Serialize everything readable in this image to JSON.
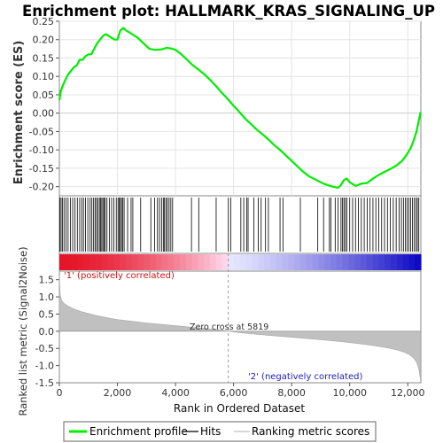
{
  "chart_data": {
    "type": "line",
    "title": "Enrichment plot: HALLMARK_KRAS_SIGNALING_UP",
    "xlabel": "Rank in Ordered Dataset",
    "ylabel_top": "Enrichment score (ES)",
    "ylabel_bottom": "Ranked list metric (Signal2Noise)",
    "x_ticks": [
      0,
      2000,
      4000,
      6000,
      8000,
      10000,
      12000
    ],
    "x_tick_labels": [
      "0",
      "2,000",
      "4,000",
      "6,000",
      "8,000",
      "10,000",
      "12,000"
    ],
    "xlim": [
      0,
      12450
    ],
    "es_ylim": [
      -0.225,
      0.25
    ],
    "es_ticks": [
      0.25,
      0.2,
      0.15,
      0.1,
      0.05,
      0.0,
      -0.05,
      -0.1,
      -0.15,
      -0.2
    ],
    "es_tick_labels": [
      "0.25",
      "0.20",
      "0.15",
      "0.10",
      "0.05",
      "0.00",
      "-0.05",
      "-0.10",
      "-0.15",
      "-0.20"
    ],
    "metric_ylim": [
      -1.5,
      1.75
    ],
    "metric_ticks": [
      1.5,
      1.0,
      0.5,
      0.0,
      -0.5,
      -1.0,
      -1.5
    ],
    "metric_tick_labels": [
      "1.5",
      "1.0",
      "0.5",
      "0.0",
      "-0.5",
      "-1.0",
      "-1.5"
    ],
    "zero_cross": 5819,
    "zero_cross_label": "Zero cross at 5819",
    "positive_label": "'1' (positively correlated)",
    "negative_label": "'2' (negatively correlated)",
    "series": [
      {
        "name": "Enrichment profile",
        "color": "#00ee00",
        "x": [
          0,
          50,
          120,
          200,
          300,
          400,
          500,
          600,
          700,
          800,
          900,
          1000,
          1100,
          1200,
          1300,
          1400,
          1500,
          1600,
          1700,
          1800,
          1900,
          2000,
          2100,
          2200,
          2300,
          2400,
          2500,
          2700,
          2900,
          3100,
          3300,
          3500,
          3700,
          3900,
          4000,
          4200,
          4400,
          4600,
          4800,
          5000,
          5200,
          5400,
          5600,
          5800,
          6000,
          6200,
          6400,
          6600,
          6800,
          7000,
          7200,
          7400,
          7600,
          7800,
          8000,
          8200,
          8400,
          8600,
          8800,
          9000,
          9200,
          9400,
          9600,
          9700,
          9800,
          9900,
          10000,
          10200,
          10400,
          10600,
          10800,
          11000,
          11200,
          11400,
          11600,
          11800,
          11900,
          12000,
          12100,
          12200,
          12300,
          12380,
          12440
        ],
        "y": [
          0.035,
          0.06,
          0.075,
          0.09,
          0.105,
          0.115,
          0.125,
          0.13,
          0.145,
          0.145,
          0.155,
          0.16,
          0.16,
          0.175,
          0.19,
          0.2,
          0.21,
          0.215,
          0.21,
          0.205,
          0.2,
          0.2,
          0.225,
          0.232,
          0.225,
          0.22,
          0.215,
          0.205,
          0.19,
          0.175,
          0.172,
          0.173,
          0.178,
          0.175,
          0.172,
          0.16,
          0.145,
          0.13,
          0.118,
          0.105,
          0.09,
          0.073,
          0.055,
          0.038,
          0.02,
          0.003,
          -0.015,
          -0.03,
          -0.045,
          -0.058,
          -0.072,
          -0.087,
          -0.1,
          -0.115,
          -0.13,
          -0.145,
          -0.16,
          -0.172,
          -0.18,
          -0.188,
          -0.195,
          -0.2,
          -0.203,
          -0.195,
          -0.182,
          -0.178,
          -0.188,
          -0.198,
          -0.192,
          -0.19,
          -0.178,
          -0.168,
          -0.16,
          -0.152,
          -0.143,
          -0.13,
          -0.12,
          -0.108,
          -0.095,
          -0.075,
          -0.05,
          -0.02,
          0.003
        ]
      },
      {
        "name": "Hits",
        "color": "#000000",
        "positions": [
          20,
          60,
          110,
          160,
          230,
          300,
          380,
          460,
          540,
          620,
          700,
          770,
          830,
          900,
          980,
          1060,
          1120,
          1180,
          1230,
          1280,
          1330,
          1380,
          1420,
          1460,
          1500,
          1540,
          1580,
          1640,
          1720,
          1800,
          1880,
          1960,
          2020,
          2060,
          2100,
          2140,
          2180,
          2230,
          2350,
          2470,
          2530,
          2800,
          3150,
          3280,
          3380,
          3450,
          3520,
          3580,
          3620,
          3670,
          3720,
          3780,
          3840,
          3900,
          4550,
          4800,
          5400,
          5820,
          5900,
          6250,
          6350,
          6450,
          6500,
          6700,
          6850,
          6950,
          7100,
          7200,
          7600,
          7700,
          8300,
          8900,
          9100,
          9300,
          9350,
          9500,
          9600,
          9700,
          9750,
          9800,
          9850,
          9900,
          10000,
          10100,
          10200,
          10300,
          10400,
          10500,
          10600,
          10700,
          10800,
          10900,
          11000,
          11100,
          11200,
          11300,
          11400,
          11500,
          11600,
          11700,
          11780,
          11850,
          11920,
          11980,
          12040,
          12100,
          12160,
          12220,
          12280,
          12330,
          12380
        ]
      },
      {
        "name": "Ranking metric scores",
        "color": "#c0c0c0",
        "x": [
          0,
          30,
          80,
          150,
          300,
          500,
          800,
          1200,
          1600,
          2000,
          2500,
          3000,
          3500,
          4000,
          4500,
          5000,
          5500,
          5819,
          6200,
          6800,
          7500,
          8200,
          9000,
          9800,
          10500,
          11000,
          11400,
          11700,
          11900,
          12050,
          12200,
          12300,
          12380,
          12440
        ],
        "y": [
          1.6,
          1.05,
          0.9,
          0.82,
          0.73,
          0.65,
          0.56,
          0.47,
          0.4,
          0.34,
          0.29,
          0.24,
          0.2,
          0.16,
          0.12,
          0.08,
          0.04,
          0.0,
          -0.04,
          -0.09,
          -0.14,
          -0.19,
          -0.25,
          -0.31,
          -0.38,
          -0.44,
          -0.5,
          -0.56,
          -0.62,
          -0.68,
          -0.78,
          -0.9,
          -1.1,
          -1.42
        ]
      }
    ],
    "legend": {
      "placement": "bottom",
      "items": [
        {
          "label": "Enrichment profile",
          "color": "#00ee00"
        },
        {
          "label": "Hits",
          "color": "#000000"
        },
        {
          "label": "Ranking metric scores",
          "color": "#c0c0c0"
        }
      ]
    }
  }
}
